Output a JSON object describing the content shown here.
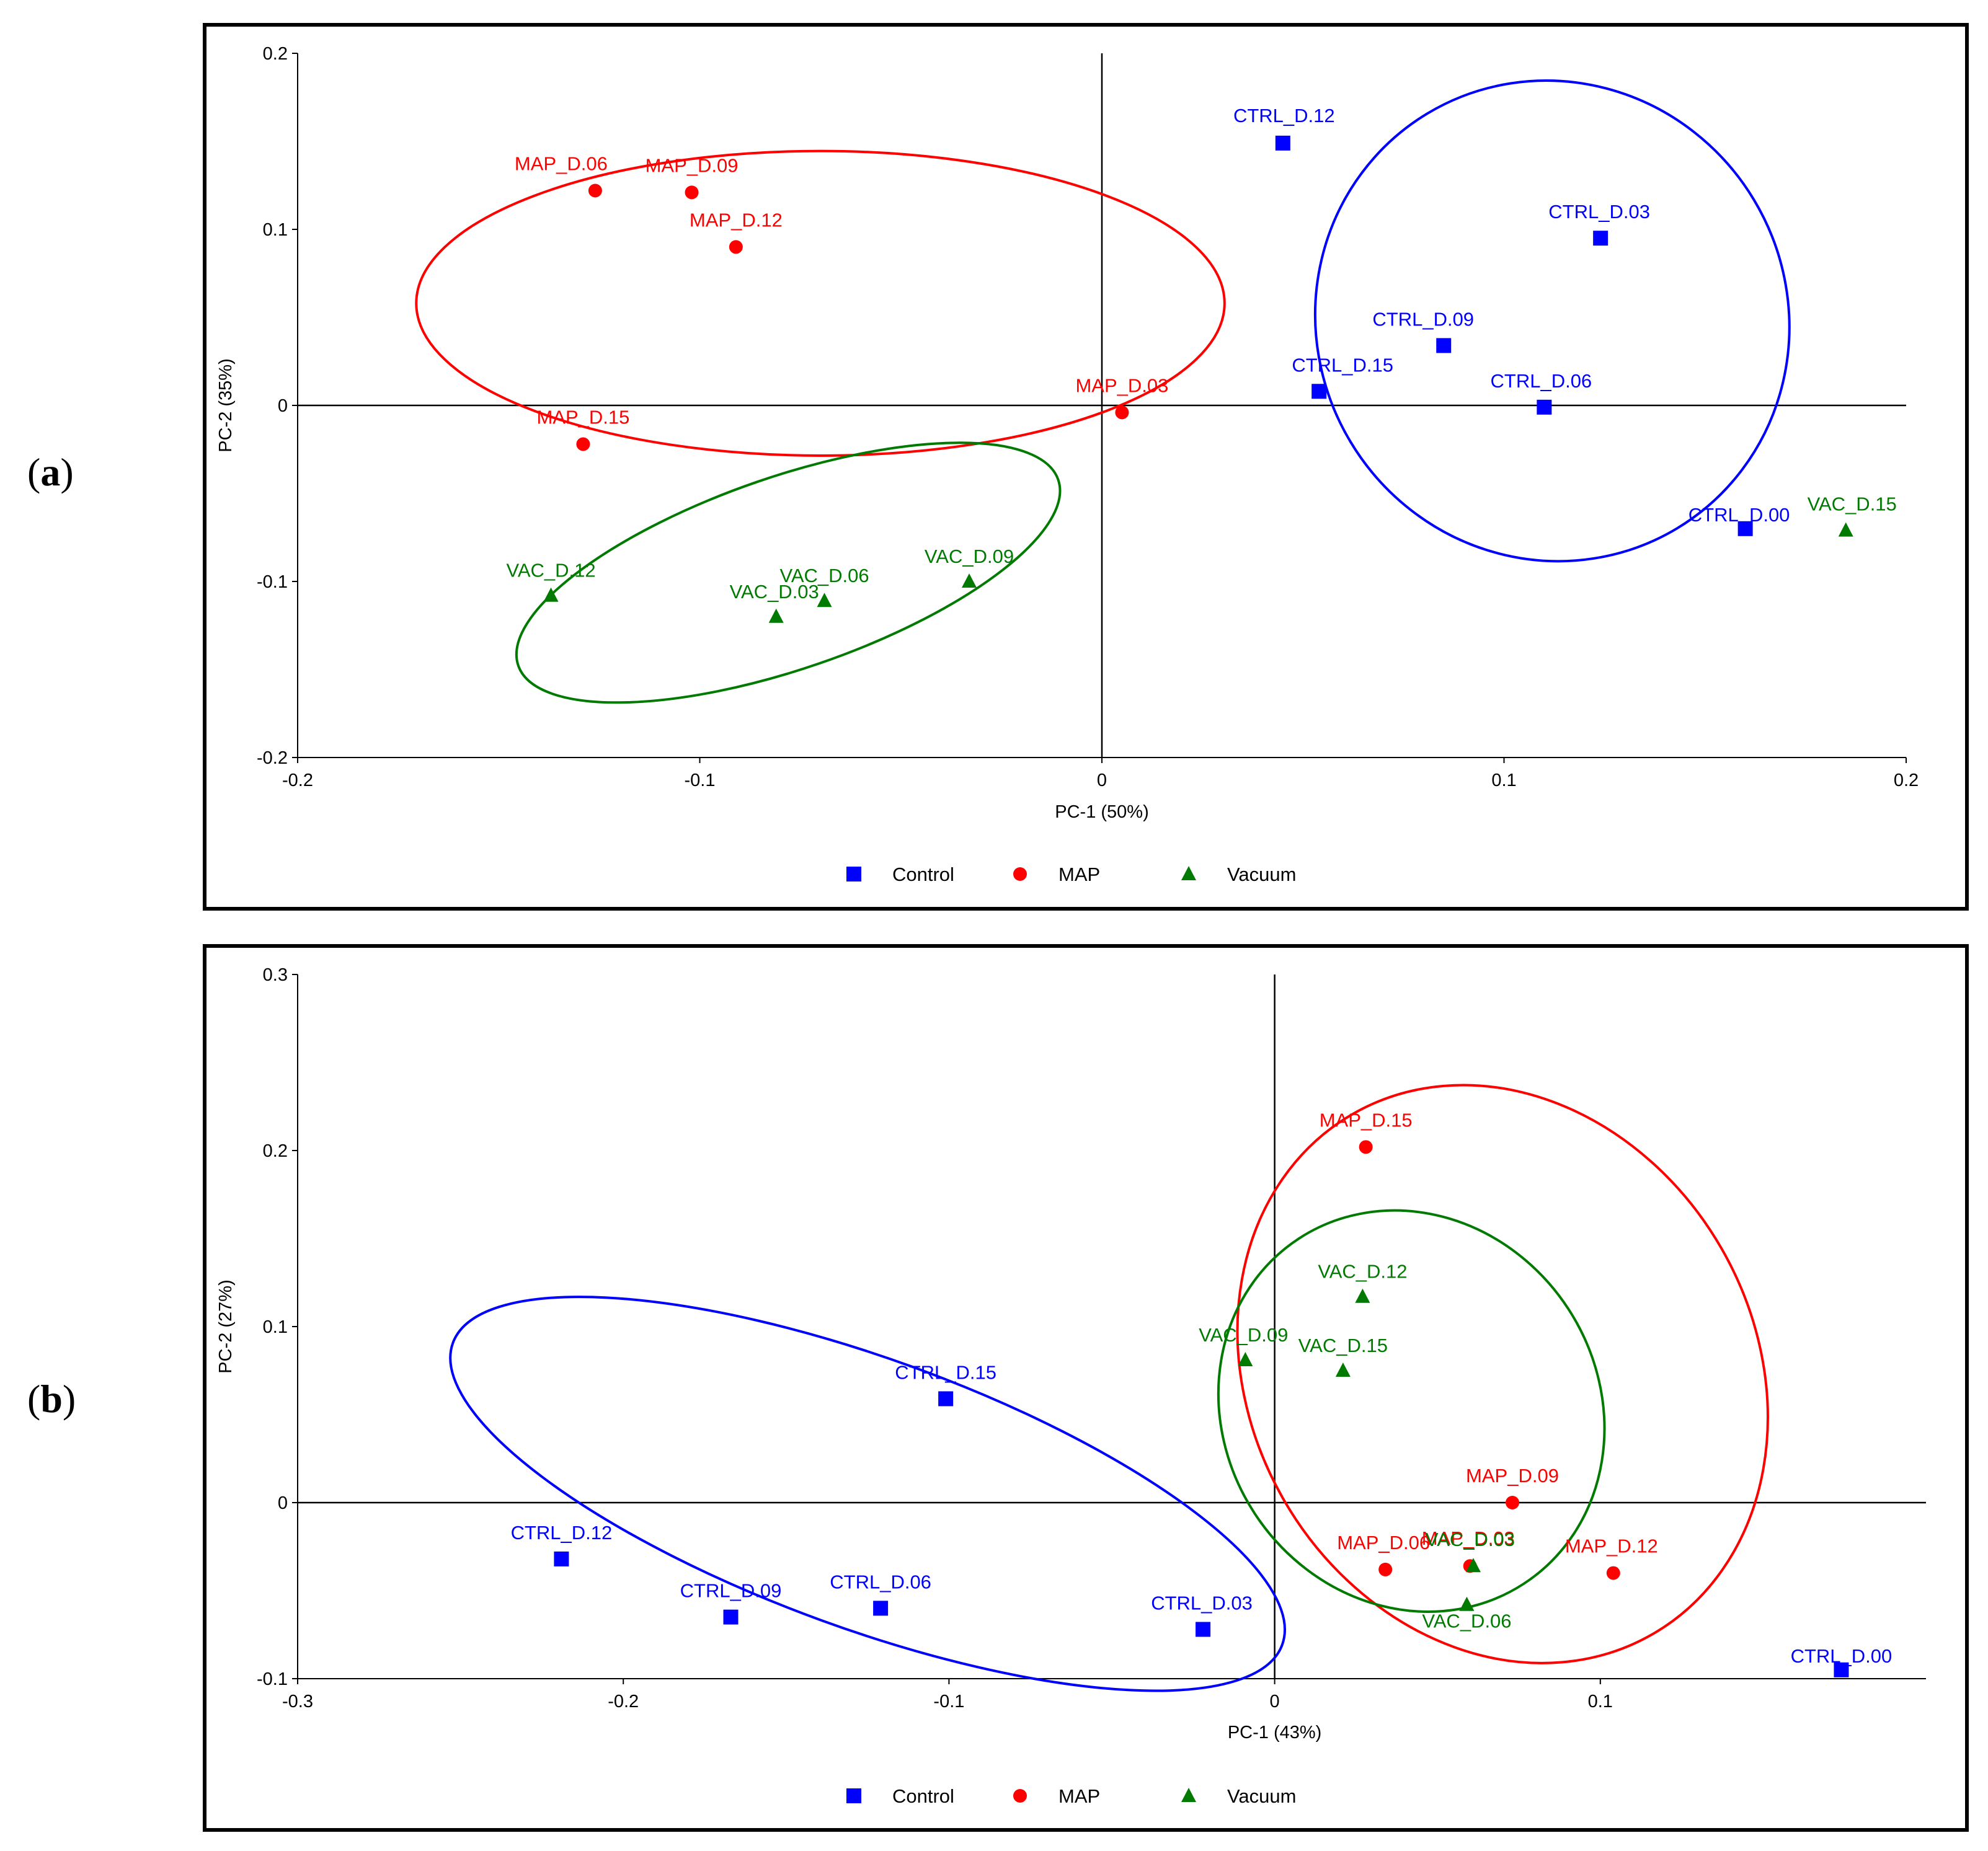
{
  "panels": [
    {
      "letter": "a"
    },
    {
      "letter": "b"
    }
  ],
  "colors": {
    "Control": "#0000ff",
    "MAP": "#ff0000",
    "Vacuum": "#007a00"
  },
  "chart_data": [
    {
      "type": "scatter",
      "title": "",
      "xlabel": "PC-1 (50%)",
      "ylabel": "PC-2 (35%)",
      "xlim": [
        -0.2,
        0.2
      ],
      "ylim": [
        -0.2,
        0.2
      ],
      "xticks": [
        -0.2,
        -0.1,
        0,
        0.1,
        0.2
      ],
      "yticks": [
        -0.2,
        -0.1,
        0,
        0.1,
        0.2
      ],
      "xtick_labels": [
        "-0.2",
        "-0.1",
        "0",
        "0.1",
        "0.2"
      ],
      "ytick_labels": [
        "-0.2",
        "-0.1",
        "0",
        "0.1",
        "0.2"
      ],
      "grid": false,
      "legend": {
        "position": "bottom-center",
        "entries": [
          "Control",
          "MAP",
          "Vacuum"
        ]
      },
      "series": [
        {
          "name": "Control",
          "marker": "square",
          "points": [
            {
              "label": "CTRL_D.12",
              "x": 0.045,
              "y": 0.149
            },
            {
              "label": "CTRL_D.03",
              "x": 0.124,
              "y": 0.095
            },
            {
              "label": "CTRL_D.09",
              "x": 0.085,
              "y": 0.034
            },
            {
              "label": "CTRL_D.15",
              "x": 0.054,
              "y": 0.008
            },
            {
              "label": "CTRL_D.06",
              "x": 0.11,
              "y": -0.001
            },
            {
              "label": "CTRL_D.00",
              "x": 0.16,
              "y": -0.07
            }
          ]
        },
        {
          "name": "MAP",
          "marker": "circle",
          "points": [
            {
              "label": "MAP_D.06",
              "x": -0.126,
              "y": 0.122
            },
            {
              "label": "MAP_D.09",
              "x": -0.102,
              "y": 0.121
            },
            {
              "label": "MAP_D.12",
              "x": -0.091,
              "y": 0.09
            },
            {
              "label": "MAP_D.03",
              "x": 0.005,
              "y": -0.004
            },
            {
              "label": "MAP_D.15",
              "x": -0.129,
              "y": -0.022
            }
          ]
        },
        {
          "name": "Vacuum",
          "marker": "triangle",
          "points": [
            {
              "label": "VAC_D.12",
              "x": -0.137,
              "y": -0.108
            },
            {
              "label": "VAC_D.03",
              "x": -0.081,
              "y": -0.12
            },
            {
              "label": "VAC_D.06",
              "x": -0.069,
              "y": -0.111
            },
            {
              "label": "VAC_D.09",
              "x": -0.033,
              "y": -0.1
            },
            {
              "label": "VAC_D.15",
              "x": 0.185,
              "y": -0.071
            }
          ]
        }
      ],
      "ellipses": [
        {
          "group": "MAP",
          "cx": -0.07,
          "cy": 0.058,
          "rx": 0.1005,
          "ry": 0.0865,
          "angle": 0
        },
        {
          "group": "Vacuum",
          "cx": -0.078,
          "cy": -0.095,
          "rx": 0.071,
          "ry": 0.0545,
          "angle": -19
        },
        {
          "group": "Control",
          "cx": 0.112,
          "cy": 0.048,
          "rx": 0.0585,
          "ry": 0.1375,
          "angle": -31
        }
      ]
    },
    {
      "type": "scatter",
      "title": "",
      "xlabel": "PC-1 (43%)",
      "ylabel": "PC-2 (27%)",
      "xlim": [
        -0.3,
        0.2
      ],
      "ylim": [
        -0.1,
        0.3
      ],
      "xticks": [
        -0.3,
        -0.2,
        -0.1,
        0,
        0.1
      ],
      "yticks": [
        -0.1,
        0,
        0.1,
        0.2,
        0.3
      ],
      "xtick_labels": [
        "-0.3",
        "-0.2",
        "-0.1",
        "0",
        "0.1"
      ],
      "ytick_labels": [
        "-0.1",
        "0",
        "0.1",
        "0.2",
        "0.3"
      ],
      "grid": false,
      "legend": {
        "position": "bottom-center",
        "entries": [
          "Control",
          "MAP",
          "Vacuum"
        ]
      },
      "series": [
        {
          "name": "Control",
          "marker": "square",
          "points": [
            {
              "label": "CTRL_D.15",
              "x": -0.101,
              "y": 0.059
            },
            {
              "label": "CTRL_D.12",
              "x": -0.219,
              "y": -0.032
            },
            {
              "label": "CTRL_D.09",
              "x": -0.167,
              "y": -0.065
            },
            {
              "label": "CTRL_D.06",
              "x": -0.121,
              "y": -0.06
            },
            {
              "label": "CTRL_D.03",
              "x": -0.022,
              "y": -0.072
            },
            {
              "label": "CTRL_D.00",
              "x": 0.174,
              "y": -0.095
            }
          ]
        },
        {
          "name": "MAP",
          "marker": "circle",
          "points": [
            {
              "label": "MAP_D.15",
              "x": 0.028,
              "y": 0.202
            },
            {
              "label": "MAP_D.09",
              "x": 0.073,
              "y": 0
            },
            {
              "label": "MAP_D.06",
              "x": 0.034,
              "y": -0.038
            },
            {
              "label": "MAP_D.03",
              "x": 0.06,
              "y": -0.036
            },
            {
              "label": "MAP_D.12",
              "x": 0.104,
              "y": -0.04
            }
          ]
        },
        {
          "name": "Vacuum",
          "marker": "triangle",
          "points": [
            {
              "label": "VAC_D.12",
              "x": 0.027,
              "y": 0.117
            },
            {
              "label": "VAC_D.09",
              "x": -0.009,
              "y": 0.081
            },
            {
              "label": "VAC_D.15",
              "x": 0.021,
              "y": 0.075
            },
            {
              "label": "VAC_D.03",
              "x": 0.061,
              "y": -0.036
            },
            {
              "label": "VAC_D.06",
              "x": 0.059,
              "y": -0.058
            }
          ]
        }
      ],
      "ellipses": [
        {
          "group": "Control",
          "cx": -0.125,
          "cy": 0.005,
          "rx": 0.1355,
          "ry": 0.0765,
          "angle": 20
        },
        {
          "group": "MAP",
          "cx": 0.07,
          "cy": 0.073,
          "rx": 0.0775,
          "ry": 0.1705,
          "angle": -30
        },
        {
          "group": "Vacuum",
          "cx": 0.042,
          "cy": 0.052,
          "rx": 0.0575,
          "ry": 0.117,
          "angle": -33
        }
      ]
    }
  ]
}
